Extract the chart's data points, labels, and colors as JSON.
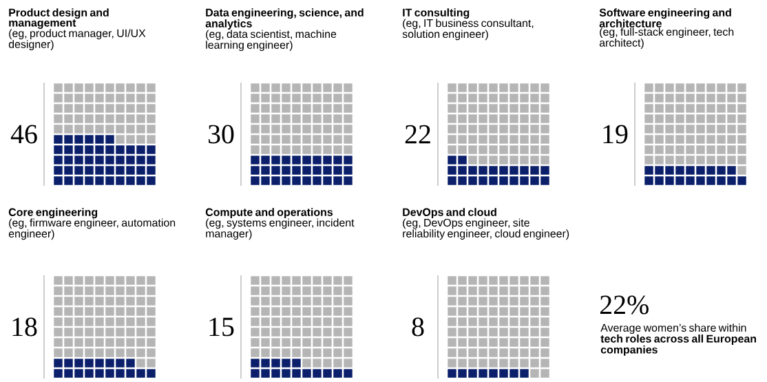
{
  "chart_data": [
    {
      "type": "other",
      "title": "Product design and management",
      "subtitle": "(eg, product manager, UI/UX designer)",
      "values": [
        46
      ],
      "color": "#0b1f6b",
      "data_labels": true
    },
    {
      "type": "other",
      "title": "Data engineering, science, and analytics",
      "subtitle": "(eg, data scientist, machine learning engineer)",
      "values": [
        30
      ],
      "color": "#0b1f6b",
      "data_labels": true
    },
    {
      "type": "other",
      "title": "IT consulting",
      "subtitle": "(eg, IT business consultant, solution engineer)",
      "values": [
        22
      ],
      "color": "#0b1f6b",
      "data_labels": true
    },
    {
      "type": "other",
      "title": "Software engineering and architecture",
      "subtitle": "(eg, full-stack engineer, tech architect)",
      "values": [
        19
      ],
      "color": "#0b1f6b",
      "data_labels": true
    },
    {
      "type": "other",
      "title": "Core engineering",
      "subtitle": "(eg, firmware engineer, automation engineer)",
      "values": [
        18
      ],
      "color": "#0b1f6b",
      "data_labels": true
    },
    {
      "type": "other",
      "title": "Compute and operations",
      "subtitle": "(eg, systems engineer, incident manager)",
      "values": [
        15
      ],
      "color": "#0b1f6b",
      "data_labels": true
    },
    {
      "type": "other",
      "title": "DevOps and cloud",
      "subtitle": "(eg, DevOps engineer, site reliability engineer, cloud engineer)",
      "values": [
        8
      ],
      "color": "#0b1f6b",
      "data_labels": true
    },
    {
      "type": "other",
      "title": "22%",
      "subtitle": "Average women’s share within **tech roles across all European companies**"
    }
  ]
}
